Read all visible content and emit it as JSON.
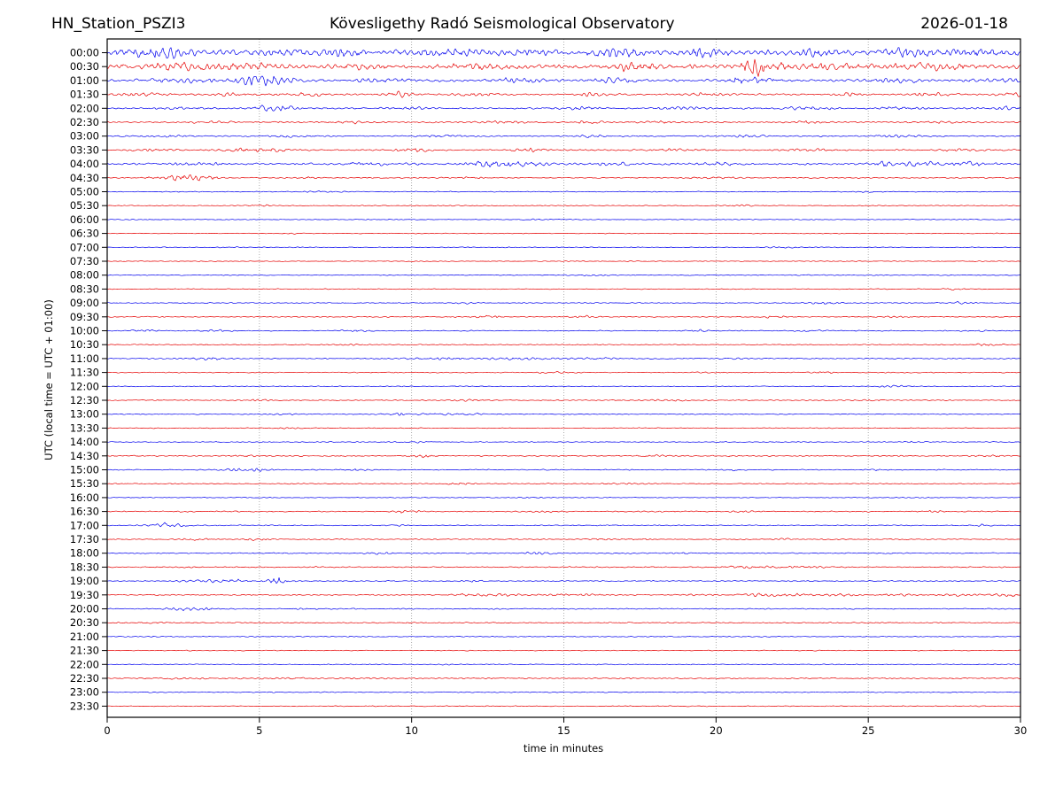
{
  "header": {
    "station": "HN_Station_PSZI3",
    "observatory": "Kövesligethy Radó Seismological Observatory",
    "date": "2026-01-18"
  },
  "chart_data": {
    "type": "line",
    "subtype": "helicorder-seismogram",
    "title": "Kövesligethy Radó Seismological Observatory",
    "title_left": "HN_Station_PSZI3",
    "title_right": "2026-01-18",
    "xlabel": "time in minutes",
    "ylabel": "UTC (local time = UTC + 01:00)",
    "xlim": [
      0,
      30
    ],
    "x_ticks": [
      0,
      5,
      10,
      15,
      20,
      25,
      30
    ],
    "grid": "dotted vertical lines at 5-minute intervals",
    "trace_colors": {
      "blue": "#0000ee",
      "red": "#e60000"
    },
    "frame_color": "#000000",
    "grid_color": "#999999",
    "rows_per_hour": 2,
    "minutes_per_row": 30,
    "event_format": [
      "minute",
      "amplitude_px",
      "sigma_minutes"
    ],
    "rows": [
      {
        "t": "00:00",
        "c": "blue",
        "a": 2.6,
        "ev": [
          [
            1.4,
            4.2,
            0.5
          ],
          [
            2.2,
            3.2,
            0.4
          ],
          [
            5.5,
            2.5,
            0.6
          ],
          [
            7.6,
            3.5,
            0.5
          ],
          [
            11.2,
            2.8,
            0.7
          ],
          [
            13.9,
            3.0,
            0.5
          ],
          [
            16.8,
            3.2,
            0.6
          ],
          [
            19.6,
            3.5,
            0.5
          ],
          [
            23.4,
            3.2,
            0.5
          ],
          [
            26.3,
            3.5,
            0.6
          ],
          [
            28.6,
            3.0,
            0.5
          ]
        ]
      },
      {
        "t": "00:30",
        "c": "red",
        "a": 2.2,
        "ev": [
          [
            2.6,
            2.8,
            0.8
          ],
          [
            4.6,
            3.2,
            0.7
          ],
          [
            8.3,
            2.6,
            0.6
          ],
          [
            12.1,
            2.2,
            0.8
          ],
          [
            17.4,
            2.6,
            0.7
          ],
          [
            21.2,
            8.5,
            0.22
          ],
          [
            21.8,
            3.5,
            0.5
          ],
          [
            24.2,
            2.2,
            0.8
          ],
          [
            27.1,
            2.6,
            0.8
          ]
        ]
      },
      {
        "t": "01:00",
        "c": "blue",
        "a": 1.25,
        "ev": [
          [
            2.1,
            1.8,
            0.8
          ],
          [
            4.6,
            2.3,
            0.6
          ],
          [
            5.6,
            2.2,
            0.5
          ],
          [
            9.1,
            1.6,
            0.7
          ],
          [
            13.6,
            1.8,
            0.6
          ],
          [
            16.6,
            2.0,
            0.5
          ],
          [
            20.8,
            3.2,
            0.3
          ],
          [
            21.4,
            2.2,
            0.5
          ],
          [
            25.6,
            1.6,
            0.6
          ],
          [
            29.6,
            2.2,
            0.5
          ]
        ]
      },
      {
        "t": "01:30",
        "c": "red",
        "a": 0.9,
        "ev": [
          [
            1.0,
            1.4,
            0.6
          ],
          [
            4.0,
            1.4,
            0.5
          ],
          [
            6.6,
            1.6,
            0.5
          ],
          [
            9.6,
            2.4,
            0.3
          ],
          [
            12.1,
            1.4,
            0.6
          ],
          [
            16.0,
            1.4,
            0.5
          ],
          [
            19.6,
            1.4,
            0.5
          ],
          [
            24.3,
            2.0,
            0.4
          ],
          [
            27.1,
            1.4,
            0.5
          ],
          [
            29.7,
            2.4,
            0.3
          ]
        ]
      },
      {
        "t": "02:00",
        "c": "blue",
        "a": 0.8,
        "ev": [
          [
            2.5,
            1.2,
            0.6
          ],
          [
            5.3,
            2.0,
            0.4
          ],
          [
            5.9,
            1.8,
            0.4
          ],
          [
            10.0,
            1.2,
            0.5
          ],
          [
            15.5,
            1.5,
            0.5
          ],
          [
            19.0,
            1.2,
            0.5
          ],
          [
            23.0,
            1.2,
            0.5
          ],
          [
            26.0,
            1.5,
            0.5
          ],
          [
            29.5,
            1.5,
            0.4
          ]
        ]
      },
      {
        "t": "02:30",
        "c": "red",
        "a": 0.7,
        "ev": [
          [
            3.5,
            1.0,
            0.5
          ],
          [
            8.0,
            1.0,
            0.5
          ],
          [
            13.0,
            1.2,
            0.5
          ],
          [
            15.8,
            1.8,
            0.3
          ],
          [
            18.0,
            1.0,
            0.5
          ],
          [
            23.0,
            1.3,
            0.4
          ],
          [
            27.5,
            1.0,
            0.5
          ]
        ]
      },
      {
        "t": "03:00",
        "c": "blue",
        "a": 0.7,
        "ev": [
          [
            2.0,
            1.0,
            0.5
          ],
          [
            6.0,
            1.2,
            0.5
          ],
          [
            11.0,
            1.0,
            0.5
          ],
          [
            16.0,
            1.2,
            0.4
          ],
          [
            21.0,
            1.0,
            0.5
          ],
          [
            26.0,
            1.2,
            0.5
          ]
        ]
      },
      {
        "t": "03:30",
        "c": "red",
        "a": 0.8,
        "ev": [
          [
            1.5,
            1.3,
            0.5
          ],
          [
            4.5,
            2.0,
            0.5
          ],
          [
            5.5,
            1.8,
            0.4
          ],
          [
            10.0,
            1.5,
            0.4
          ],
          [
            14.0,
            1.2,
            0.5
          ],
          [
            18.5,
            1.2,
            0.5
          ],
          [
            23.0,
            1.2,
            0.5
          ],
          [
            28.0,
            1.3,
            0.5
          ]
        ]
      },
      {
        "t": "04:00",
        "c": "blue",
        "a": 1.0,
        "ev": [
          [
            3.0,
            1.3,
            0.6
          ],
          [
            8.5,
            1.5,
            0.4
          ],
          [
            12.5,
            2.0,
            0.8
          ],
          [
            13.5,
            1.8,
            0.6
          ],
          [
            16.5,
            1.5,
            0.5
          ],
          [
            20.0,
            1.2,
            0.5
          ],
          [
            25.5,
            3.0,
            0.15
          ],
          [
            26.5,
            1.8,
            0.8
          ],
          [
            28.5,
            1.5,
            0.6
          ]
        ]
      },
      {
        "t": "04:30",
        "c": "red",
        "a": 0.6,
        "ev": [
          [
            1.8,
            1.5,
            0.4
          ],
          [
            2.5,
            1.8,
            0.5
          ],
          [
            3.2,
            1.5,
            0.4
          ],
          [
            6.7,
            1.3,
            0.3
          ],
          [
            12.0,
            0.8,
            0.5
          ],
          [
            20.0,
            0.7,
            0.5
          ]
        ]
      },
      {
        "t": "05:00",
        "c": "blue",
        "a": 0.5,
        "ev": [
          [
            7.0,
            0.7,
            0.4
          ],
          [
            25.0,
            0.6,
            0.4
          ]
        ]
      },
      {
        "t": "05:30",
        "c": "red",
        "a": 0.45,
        "ev": [
          [
            5.0,
            0.8,
            0.3
          ],
          [
            21.0,
            0.6,
            0.4
          ]
        ]
      },
      {
        "t": "06:00",
        "c": "blue",
        "a": 0.4,
        "ev": [
          [
            14.0,
            0.5,
            0.4
          ]
        ]
      },
      {
        "t": "06:30",
        "c": "red",
        "a": 0.4,
        "ev": [
          [
            6.0,
            0.5,
            0.3
          ]
        ]
      },
      {
        "t": "07:00",
        "c": "blue",
        "a": 0.45,
        "ev": [
          [
            4.0,
            0.6,
            0.3
          ],
          [
            22.0,
            0.5,
            0.4
          ]
        ]
      },
      {
        "t": "07:30",
        "c": "red",
        "a": 0.4,
        "ev": []
      },
      {
        "t": "08:00",
        "c": "blue",
        "a": 0.45,
        "ev": [
          [
            16.0,
            0.6,
            0.3
          ]
        ]
      },
      {
        "t": "08:30",
        "c": "red",
        "a": 0.45,
        "ev": [
          [
            27.8,
            0.8,
            0.3
          ]
        ]
      },
      {
        "t": "09:00",
        "c": "blue",
        "a": 0.5,
        "ev": [
          [
            12.0,
            0.6,
            0.3
          ],
          [
            23.5,
            1.2,
            0.4
          ],
          [
            28.0,
            0.8,
            0.3
          ]
        ]
      },
      {
        "t": "09:30",
        "c": "red",
        "a": 0.5,
        "ev": [
          [
            12.5,
            1.5,
            0.3
          ],
          [
            15.6,
            1.2,
            0.3
          ],
          [
            22.0,
            1.0,
            0.3
          ],
          [
            26.0,
            0.6,
            0.4
          ]
        ]
      },
      {
        "t": "10:00",
        "c": "blue",
        "a": 0.55,
        "ev": [
          [
            1.2,
            0.8,
            0.3
          ],
          [
            3.6,
            1.2,
            0.4
          ],
          [
            8.2,
            1.3,
            0.3
          ],
          [
            19.4,
            1.3,
            0.3
          ],
          [
            23.0,
            0.8,
            0.4
          ],
          [
            28.5,
            0.9,
            0.3
          ]
        ]
      },
      {
        "t": "10:30",
        "c": "red",
        "a": 0.5,
        "ev": [
          [
            8.0,
            0.6,
            0.4
          ],
          [
            29.0,
            1.0,
            0.4
          ]
        ]
      },
      {
        "t": "11:00",
        "c": "blue",
        "a": 0.55,
        "ev": [
          [
            3.3,
            1.3,
            0.4
          ],
          [
            11.5,
            1.0,
            1.2
          ],
          [
            13.6,
            1.2,
            0.5
          ],
          [
            16.0,
            0.9,
            0.8
          ],
          [
            20.5,
            0.7,
            0.5
          ]
        ]
      },
      {
        "t": "11:30",
        "c": "red",
        "a": 0.5,
        "ev": [
          [
            14.7,
            1.2,
            0.3
          ],
          [
            20.0,
            0.6,
            0.4
          ],
          [
            23.6,
            1.3,
            0.3
          ]
        ]
      },
      {
        "t": "12:00",
        "c": "blue",
        "a": 0.45,
        "ev": [
          [
            25.8,
            1.0,
            0.3
          ]
        ]
      },
      {
        "t": "12:30",
        "c": "red",
        "a": 0.55,
        "ev": [
          [
            5.0,
            0.7,
            0.4
          ],
          [
            12.0,
            0.6,
            0.4
          ],
          [
            18.5,
            0.7,
            0.4
          ],
          [
            25.0,
            0.6,
            0.4
          ]
        ]
      },
      {
        "t": "13:00",
        "c": "blue",
        "a": 0.5,
        "ev": [
          [
            5.9,
            0.8,
            0.3
          ],
          [
            9.4,
            1.3,
            0.3
          ],
          [
            11.5,
            0.7,
            0.8
          ]
        ]
      },
      {
        "t": "13:30",
        "c": "red",
        "a": 0.45,
        "ev": [
          [
            6.0,
            0.7,
            0.3
          ]
        ]
      },
      {
        "t": "14:00",
        "c": "blue",
        "a": 0.5,
        "ev": [
          [
            10.0,
            0.5,
            0.4
          ],
          [
            26.5,
            0.8,
            0.3
          ]
        ]
      },
      {
        "t": "14:30",
        "c": "red",
        "a": 0.6,
        "ev": [
          [
            4.5,
            0.8,
            0.4
          ],
          [
            10.4,
            1.3,
            0.3
          ],
          [
            18.0,
            0.8,
            0.4
          ],
          [
            29.0,
            0.7,
            0.4
          ]
        ]
      },
      {
        "t": "15:00",
        "c": "blue",
        "a": 0.55,
        "ev": [
          [
            4.3,
            1.1,
            0.4
          ],
          [
            5.0,
            1.0,
            0.3
          ],
          [
            8.2,
            0.8,
            0.3
          ],
          [
            20.6,
            1.5,
            0.2
          ],
          [
            25.2,
            0.8,
            0.3
          ]
        ]
      },
      {
        "t": "15:30",
        "c": "red",
        "a": 0.5,
        "ev": [
          [
            11.5,
            1.3,
            0.3
          ],
          [
            17.0,
            0.6,
            0.4
          ]
        ]
      },
      {
        "t": "16:00",
        "c": "blue",
        "a": 0.4,
        "ev": [
          [
            14.0,
            0.5,
            0.4
          ]
        ]
      },
      {
        "t": "16:30",
        "c": "red",
        "a": 0.6,
        "ev": [
          [
            2.5,
            0.6,
            0.4
          ],
          [
            9.7,
            1.2,
            0.3
          ],
          [
            14.5,
            0.7,
            0.4
          ],
          [
            21.0,
            0.7,
            0.4
          ],
          [
            27.0,
            0.6,
            0.4
          ]
        ]
      },
      {
        "t": "17:00",
        "c": "blue",
        "a": 0.5,
        "ev": [
          [
            1.7,
            1.5,
            0.4
          ],
          [
            2.3,
            1.2,
            0.4
          ],
          [
            9.5,
            0.6,
            0.4
          ],
          [
            28.8,
            0.8,
            0.3
          ]
        ]
      },
      {
        "t": "17:30",
        "c": "red",
        "a": 0.55,
        "ev": [
          [
            2.8,
            1.0,
            0.4
          ],
          [
            5.0,
            1.2,
            0.3
          ],
          [
            16.3,
            1.0,
            0.2
          ],
          [
            17.5,
            1.0,
            0.2
          ],
          [
            22.0,
            0.7,
            0.4
          ]
        ]
      },
      {
        "t": "18:00",
        "c": "blue",
        "a": 0.6,
        "ev": [
          [
            9.0,
            1.0,
            0.3
          ],
          [
            14.3,
            1.0,
            0.4
          ],
          [
            19.0,
            0.6,
            0.4
          ]
        ]
      },
      {
        "t": "18:30",
        "c": "red",
        "a": 0.65,
        "ev": [
          [
            21.0,
            0.9,
            0.8
          ],
          [
            22.5,
            0.9,
            0.6
          ]
        ]
      },
      {
        "t": "19:00",
        "c": "blue",
        "a": 0.6,
        "ev": [
          [
            3.2,
            1.2,
            0.5
          ],
          [
            4.2,
            1.3,
            0.4
          ],
          [
            5.5,
            2.5,
            0.2
          ],
          [
            5.8,
            1.5,
            0.3
          ],
          [
            12.0,
            0.6,
            0.4
          ]
        ]
      },
      {
        "t": "19:30",
        "c": "red",
        "a": 0.6,
        "ev": [
          [
            11.8,
            1.2,
            0.4
          ],
          [
            13.0,
            1.2,
            0.5
          ],
          [
            14.8,
            1.3,
            0.4
          ],
          [
            16.0,
            1.0,
            0.4
          ],
          [
            19.3,
            1.0,
            0.4
          ],
          [
            21.3,
            1.2,
            0.4
          ],
          [
            22.5,
            1.2,
            0.5
          ],
          [
            24.0,
            1.0,
            0.4
          ],
          [
            26.0,
            1.1,
            0.5
          ],
          [
            28.0,
            1.2,
            0.5
          ],
          [
            29.5,
            1.2,
            0.4
          ]
        ]
      },
      {
        "t": "20:00",
        "c": "blue",
        "a": 0.6,
        "ev": [
          [
            2.4,
            1.2,
            0.4
          ],
          [
            3.0,
            0.9,
            0.4
          ],
          [
            6.5,
            0.6,
            0.5
          ]
        ]
      },
      {
        "t": "20:30",
        "c": "red",
        "a": 0.6,
        "ev": [
          [
            1.5,
            0.7,
            0.4
          ]
        ]
      },
      {
        "t": "21:00",
        "c": "blue",
        "a": 0.45,
        "ev": []
      },
      {
        "t": "21:30",
        "c": "red",
        "a": 0.45,
        "ev": []
      },
      {
        "t": "22:00",
        "c": "blue",
        "a": 0.55,
        "ev": []
      },
      {
        "t": "22:30",
        "c": "red",
        "a": 0.6,
        "ev": [
          [
            2.5,
            0.7,
            0.5
          ],
          [
            6.0,
            0.7,
            0.5
          ],
          [
            8.5,
            0.7,
            0.4
          ]
        ]
      },
      {
        "t": "23:00",
        "c": "blue",
        "a": 0.5,
        "ev": []
      },
      {
        "t": "23:30",
        "c": "red",
        "a": 0.5,
        "ev": []
      }
    ]
  }
}
